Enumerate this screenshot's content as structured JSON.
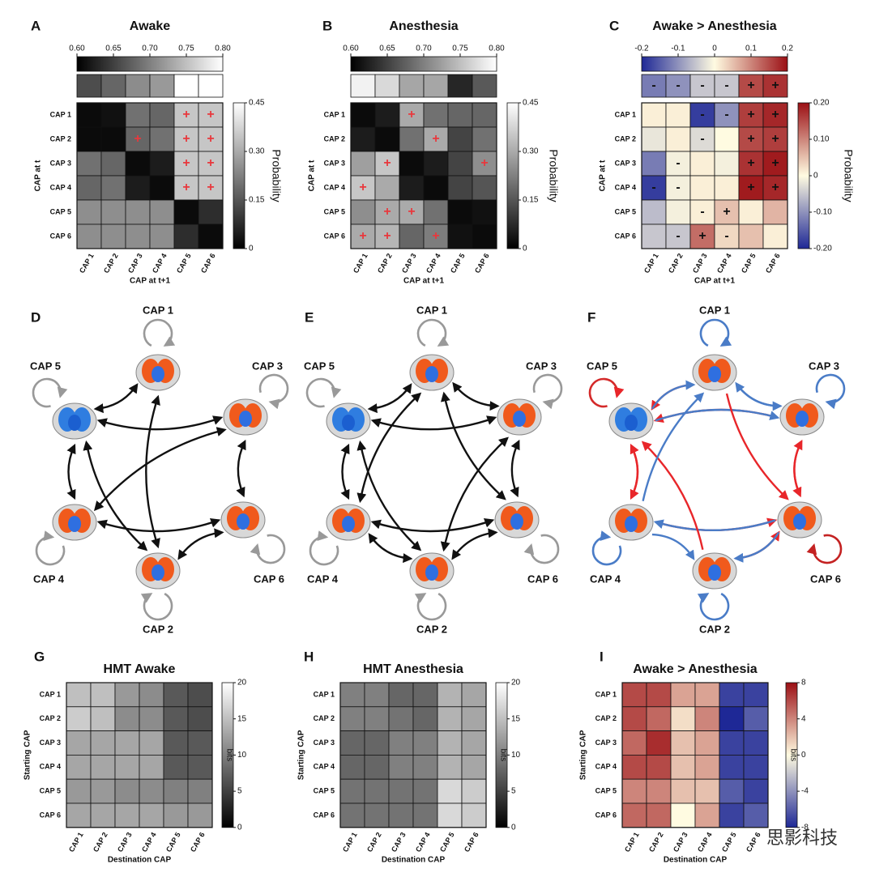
{
  "chart_data": [
    {
      "type": "heatmap",
      "panel": "A",
      "title": "Awake",
      "xlabel": "CAP at t+1",
      "ylabel": "CAP at t",
      "colormap": "gray",
      "marker_color": "#e8383d",
      "categories": [
        "CAP 1",
        "CAP 2",
        "CAP 3",
        "CAP 4",
        "CAP 5",
        "CAP 6"
      ],
      "values": [
        [
          0.02,
          0.03,
          0.2,
          0.18,
          0.35,
          0.35
        ],
        [
          0.02,
          0.02,
          0.18,
          0.2,
          0.35,
          0.35
        ],
        [
          0.2,
          0.18,
          0.02,
          0.05,
          0.35,
          0.35
        ],
        [
          0.18,
          0.2,
          0.05,
          0.02,
          0.35,
          0.35
        ],
        [
          0.25,
          0.25,
          0.25,
          0.25,
          0.02,
          0.08
        ],
        [
          0.25,
          0.25,
          0.25,
          0.25,
          0.08,
          0.02
        ]
      ],
      "markers": [
        [
          null,
          null,
          null,
          null,
          "+",
          "+"
        ],
        [
          null,
          null,
          "+",
          null,
          "+",
          "+"
        ],
        [
          null,
          null,
          null,
          null,
          "+",
          "+"
        ],
        [
          null,
          null,
          null,
          null,
          "+",
          "+"
        ],
        [
          null,
          null,
          null,
          null,
          null,
          null
        ],
        [
          null,
          null,
          null,
          null,
          null,
          null
        ]
      ],
      "colorbar": {
        "label": "Probability",
        "lim": [
          0,
          0.45
        ],
        "ticks": [
          0.45,
          {
            "value": 0.3,
            "label": "0.30"
          },
          0.15,
          0
        ]
      },
      "strip": {
        "values": [
          0.66,
          0.68,
          0.71,
          0.72,
          0.8,
          0.8
        ],
        "lim": [
          0.6,
          0.8
        ],
        "ticks": [
          {
            "value": 0.6,
            "label": "0.60"
          },
          0.65,
          {
            "value": 0.7,
            "label": "0.70"
          },
          0.75,
          {
            "value": 0.8,
            "label": "0.80"
          }
        ]
      }
    },
    {
      "type": "heatmap",
      "panel": "B",
      "title": "Anesthesia",
      "xlabel": "CAP at t+1",
      "ylabel": "CAP at t",
      "colormap": "gray",
      "marker_color": "#e8383d",
      "categories": [
        "CAP 1",
        "CAP 2",
        "CAP 3",
        "CAP 4",
        "CAP 5",
        "CAP 6"
      ],
      "values": [
        [
          0.02,
          0.05,
          0.3,
          0.2,
          0.18,
          0.18
        ],
        [
          0.05,
          0.02,
          0.2,
          0.3,
          0.12,
          0.2
        ],
        [
          0.28,
          0.35,
          0.02,
          0.05,
          0.12,
          0.25
        ],
        [
          0.35,
          0.3,
          0.05,
          0.02,
          0.12,
          0.15
        ],
        [
          0.25,
          0.3,
          0.3,
          0.2,
          0.02,
          0.03
        ],
        [
          0.3,
          0.32,
          0.18,
          0.22,
          0.03,
          0.02
        ]
      ],
      "markers": [
        [
          null,
          null,
          "+",
          null,
          null,
          null
        ],
        [
          null,
          null,
          null,
          "+",
          null,
          null
        ],
        [
          null,
          "+",
          null,
          null,
          null,
          "+"
        ],
        [
          "+",
          null,
          null,
          null,
          null,
          null
        ],
        [
          null,
          "+",
          "+",
          null,
          null,
          null
        ],
        [
          "+",
          "+",
          null,
          "+",
          null,
          null
        ]
      ],
      "colorbar": {
        "label": "Probability",
        "lim": [
          0,
          0.45
        ],
        "ticks": [
          0.45,
          {
            "value": 0.3,
            "label": "0.30"
          },
          0.15,
          0
        ]
      },
      "strip": {
        "values": [
          0.79,
          0.77,
          0.73,
          0.73,
          0.63,
          0.67
        ],
        "lim": [
          0.6,
          0.8
        ],
        "ticks": [
          {
            "value": 0.6,
            "label": "0.60"
          },
          0.65,
          {
            "value": 0.7,
            "label": "0.70"
          },
          0.75,
          {
            "value": 0.8,
            "label": "0.80"
          }
        ]
      }
    },
    {
      "type": "heatmap",
      "panel": "C",
      "title": "Awake > Anesthesia",
      "xlabel": "CAP at t+1",
      "ylabel": "CAP at t",
      "colormap": "diverging",
      "marker_color": "#111",
      "categories": [
        "CAP 1",
        "CAP 2",
        "CAP 3",
        "CAP 4",
        "CAP 5",
        "CAP 6"
      ],
      "values": [
        [
          0.01,
          0.01,
          -0.18,
          -0.1,
          0.16,
          0.18
        ],
        [
          -0.02,
          0.01,
          -0.03,
          0,
          0.15,
          0.16
        ],
        [
          -0.12,
          -0.01,
          0.01,
          -0.01,
          0.17,
          0.19
        ],
        [
          -0.18,
          -0.01,
          0.01,
          0.01,
          0.19,
          0.18
        ],
        [
          -0.06,
          -0.01,
          0.01,
          0.05,
          0.01,
          0.06
        ],
        [
          -0.05,
          -0.05,
          0.12,
          0.03,
          0.05,
          0.01
        ]
      ],
      "markers": [
        [
          null,
          null,
          "-",
          "-",
          "+",
          "+"
        ],
        [
          null,
          null,
          "-",
          null,
          "+",
          "+"
        ],
        [
          null,
          "-",
          null,
          null,
          "+",
          "+"
        ],
        [
          "-",
          "-",
          null,
          null,
          "+",
          "+"
        ],
        [
          null,
          null,
          "-",
          "+",
          null,
          null
        ],
        [
          null,
          "-",
          "+",
          "-",
          null,
          null
        ]
      ],
      "colorbar": {
        "label": "Probability",
        "lim": [
          -0.2,
          0.2
        ],
        "ticks": [
          {
            "value": 0.2,
            "label": "0.20"
          },
          {
            "value": 0.1,
            "label": "0.10"
          },
          0,
          {
            "value": -0.1,
            "label": "-0.10"
          },
          {
            "value": -0.2,
            "label": "-0.20"
          }
        ]
      },
      "strip": {
        "values": [
          -0.12,
          -0.1,
          -0.05,
          -0.05,
          0.15,
          0.17
        ],
        "lim": [
          -0.2,
          0.2
        ],
        "ticks": [
          -0.2,
          -0.1,
          0,
          0.1,
          0.2
        ],
        "markers": [
          "-",
          "-",
          "-",
          "-",
          "+",
          "+"
        ]
      }
    },
    {
      "type": "heatmap",
      "panel": "G",
      "title": "HMT Awake",
      "xlabel": "Destination CAP",
      "ylabel": "Starting CAP",
      "colormap": "gray",
      "categories": [
        "CAP 1",
        "CAP 2",
        "CAP 3",
        "CAP 4",
        "CAP 5",
        "CAP 6"
      ],
      "values": [
        [
          15,
          15,
          12,
          11,
          7,
          6
        ],
        [
          16,
          15,
          11,
          11,
          7,
          6
        ],
        [
          13,
          13,
          13,
          13,
          7,
          7
        ],
        [
          13,
          13,
          13,
          13,
          7,
          7
        ],
        [
          12,
          12,
          11,
          11,
          10,
          10
        ],
        [
          13,
          13,
          13,
          13,
          12,
          12
        ]
      ],
      "colorbar": {
        "label": "bits",
        "lim": [
          0,
          20
        ],
        "ticks": [
          20,
          15,
          10,
          5,
          0
        ]
      }
    },
    {
      "type": "heatmap",
      "panel": "H",
      "title": "HMT Anesthesia",
      "xlabel": "Destination CAP",
      "ylabel": "Starting CAP",
      "colormap": "gray",
      "categories": [
        "CAP 1",
        "CAP 2",
        "CAP 3",
        "CAP 4",
        "CAP 5",
        "CAP 6"
      ],
      "values": [
        [
          10,
          10,
          8,
          8,
          14,
          13
        ],
        [
          10,
          10,
          9,
          8,
          14,
          13
        ],
        [
          8,
          8,
          10,
          10,
          14,
          13
        ],
        [
          8,
          8,
          10,
          10,
          14,
          13
        ],
        [
          9,
          9,
          9,
          9,
          17,
          16
        ],
        [
          9,
          9,
          9,
          9,
          17,
          16
        ]
      ],
      "colorbar": {
        "label": "bits",
        "lim": [
          0,
          20
        ],
        "ticks": [
          20,
          15,
          10,
          5,
          0
        ]
      }
    },
    {
      "type": "heatmap",
      "panel": "I",
      "title": "Awake > Anesthesia",
      "xlabel": "Destination CAP",
      "ylabel": "Starting CAP",
      "colormap": "diverging",
      "categories": [
        "CAP 1",
        "CAP 2",
        "CAP 3",
        "CAP 4",
        "CAP 5",
        "CAP 6"
      ],
      "values": [
        [
          6,
          6,
          3,
          3,
          -7,
          -7
        ],
        [
          6,
          5,
          1,
          4,
          -8,
          -6
        ],
        [
          5,
          7,
          2,
          3,
          -7,
          -7
        ],
        [
          6,
          6,
          2,
          3,
          -7,
          -7
        ],
        [
          4,
          4,
          2,
          2,
          -6,
          -7
        ],
        [
          5,
          5,
          0,
          3,
          -7,
          -6
        ]
      ],
      "colorbar": {
        "label": "bits",
        "lim": [
          -8,
          8
        ],
        "ticks": [
          8,
          4,
          0,
          -4,
          -8
        ]
      }
    }
  ],
  "diagrams": [
    {
      "panel": "D",
      "nodes": [
        "CAP 1",
        "CAP 2",
        "CAP 3",
        "CAP 4",
        "CAP 5",
        "CAP 6"
      ],
      "both_ways": true,
      "loop_color": "#999",
      "edge_color": "#111",
      "edges": [
        [
          4,
          0
        ],
        [
          4,
          2
        ],
        [
          4,
          3
        ],
        [
          2,
          5
        ],
        [
          3,
          5
        ],
        [
          5,
          1
        ],
        [
          0,
          1
        ],
        [
          4,
          1
        ],
        [
          2,
          3
        ]
      ]
    },
    {
      "panel": "E",
      "nodes": [
        "CAP 1",
        "CAP 2",
        "CAP 3",
        "CAP 4",
        "CAP 5",
        "CAP 6"
      ],
      "both_ways": true,
      "loop_color": "#999",
      "edge_color": "#111",
      "edges": [
        [
          4,
          0
        ],
        [
          0,
          2
        ],
        [
          4,
          2
        ],
        [
          4,
          3
        ],
        [
          2,
          5
        ],
        [
          3,
          5
        ],
        [
          3,
          1
        ],
        [
          5,
          1
        ],
        [
          0,
          3
        ],
        [
          0,
          5
        ],
        [
          4,
          1
        ],
        [
          2,
          1
        ]
      ]
    },
    {
      "panel": "F",
      "nodes": [
        "CAP 1",
        "CAP 2",
        "CAP 3",
        "CAP 4",
        "CAP 5",
        "CAP 6"
      ],
      "both_ways": false,
      "loop_colors": [
        "#4a7cc7",
        "#4a7cc7",
        "#4a7cc7",
        "#4a7cc7",
        "#d42a2a",
        "#c42222"
      ],
      "edges": [
        [
          0,
          4
        ],
        [
          4,
          0
        ],
        [
          2,
          0
        ],
        [
          0,
          2
        ],
        [
          2,
          4
        ],
        [
          4,
          2
        ],
        [
          4,
          3
        ],
        [
          3,
          4
        ],
        [
          2,
          5
        ],
        [
          5,
          2
        ],
        [
          3,
          5
        ],
        [
          5,
          3
        ],
        [
          3,
          1
        ],
        [
          1,
          5
        ],
        [
          5,
          1
        ],
        [
          0,
          5
        ],
        [
          1,
          4
        ],
        [
          3,
          0
        ]
      ],
      "edge_colors": [
        "#e8262a",
        "#4a7cc7",
        "#4a7cc7",
        "#4a7cc7",
        "#e8262a",
        "#4a7cc7",
        "#e8262a",
        "#e8262a",
        "#e8262a",
        "#e8262a",
        "#e8262a",
        "#4a7cc7",
        "#4a7cc7",
        "#e8262a",
        "#4a7cc7",
        "#e8262a",
        "#e8262a",
        "#4a7cc7"
      ]
    }
  ],
  "watermark": "思影科技"
}
